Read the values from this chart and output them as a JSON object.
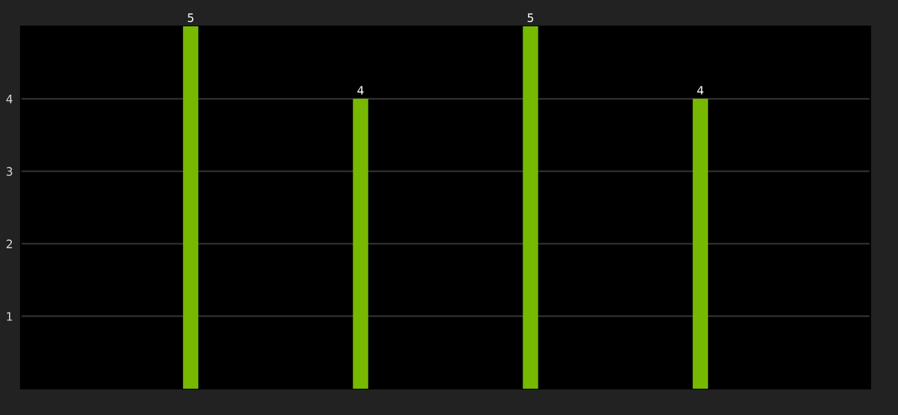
{
  "chart_data": {
    "type": "bar",
    "categories": [
      null,
      null,
      null,
      null
    ],
    "values": [
      5,
      4,
      5,
      4
    ],
    "color": "#76b900",
    "ylim": [
      0,
      5
    ],
    "yticks": [
      1,
      2,
      3,
      4
    ],
    "grid": "y",
    "data_labels": true,
    "tick_labels": "y"
  }
}
